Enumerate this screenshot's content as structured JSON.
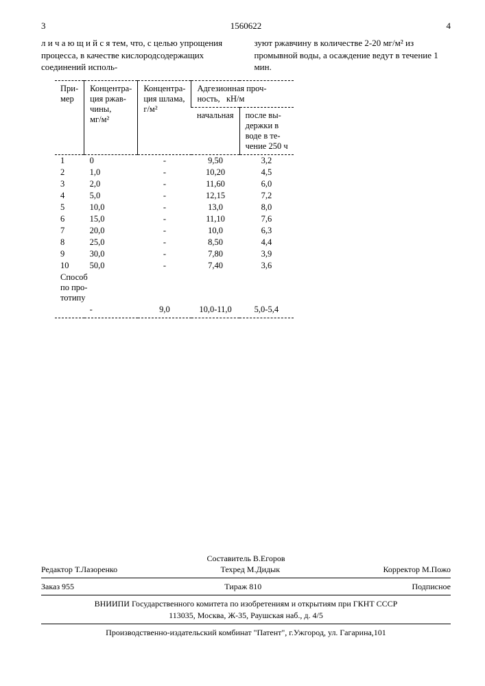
{
  "header": {
    "page_left": "3",
    "patent_no": "1560622",
    "page_right": "4"
  },
  "columns": {
    "left": "л и ч а ю щ и й с я  тем, что, с целью упрощения процесса, в качестве кислородсодержащих соединений исполь-",
    "right": "зуют ржавчину в количестве 2-20 мг/м² из промывной воды, а осаждение ведут в течение 1 мин."
  },
  "table": {
    "headers": {
      "c1": "При-\nмер",
      "c2": "Концентра-\nция ржав-\nчины,\nмг/м²",
      "c3": "Концентра-\nция шлама,\nг/м²",
      "c4_group": "Адгезионная проч-\nность,   кН/м",
      "c4a": "начальная",
      "c4b": "после вы-\nдержки в\nводе в те-\nчение 250 ч"
    },
    "rows": [
      {
        "n": "1",
        "rust": "0",
        "slime": "-",
        "adh0": "9,50",
        "adh1": "3,2"
      },
      {
        "n": "2",
        "rust": "1,0",
        "slime": "-",
        "adh0": "10,20",
        "adh1": "4,5"
      },
      {
        "n": "3",
        "rust": "2,0",
        "slime": "-",
        "adh0": "11,60",
        "adh1": "6,0"
      },
      {
        "n": "4",
        "rust": "5,0",
        "slime": "-",
        "adh0": "12,15",
        "adh1": "7,2"
      },
      {
        "n": "5",
        "rust": "10,0",
        "slime": "-",
        "adh0": "13,0",
        "adh1": "8,0"
      },
      {
        "n": "6",
        "rust": "15,0",
        "slime": "-",
        "adh0": "11,10",
        "adh1": "7,6"
      },
      {
        "n": "7",
        "rust": "20,0",
        "slime": "-",
        "adh0": "10,0",
        "adh1": "6,3"
      },
      {
        "n": "8",
        "rust": "25,0",
        "slime": "-",
        "adh0": "8,50",
        "adh1": "4,4"
      },
      {
        "n": "9",
        "rust": "30,0",
        "slime": "-",
        "adh0": "7,80",
        "adh1": "3,9"
      },
      {
        "n": "10",
        "rust": "50,0",
        "slime": "-",
        "adh0": "7,40",
        "adh1": "3,6"
      }
    ],
    "proto_label": "Способ\nпо про-\nтотипу",
    "proto": {
      "rust": "-",
      "slime": "9,0",
      "adh0": "10,0-11,0",
      "adh1": "5,0-5,4"
    }
  },
  "footer": {
    "compiler": "Составитель В.Егоров",
    "editor": "Редактор Т.Лазоренко",
    "tech": "Техред М.Дидык",
    "corrector": "Корректор М.Пожо",
    "order": "Заказ 955",
    "tirage": "Тираж 810",
    "sub": "Подписное",
    "org1": "ВНИИПИ Государственного комитета по изобретениям и открытиям при ГКНТ СССР",
    "org1_addr": "113035, Москва, Ж-35, Раушская наб., д. 4/5",
    "org2": "Производственно-издательский комбинат \"Патент\", г.Ужгород, ул. Гагарина,101"
  }
}
